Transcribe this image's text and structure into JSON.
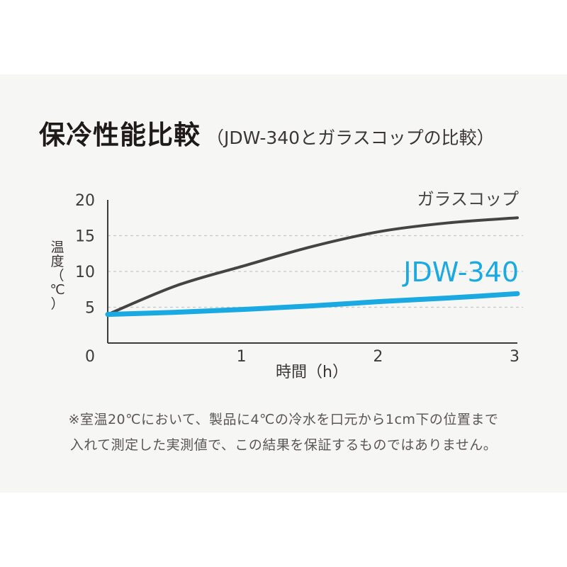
{
  "title": "保冷性能比較",
  "subtitle": "（JDW-340とガラスコップの比較）",
  "notes": [
    "※室温20℃において、製品に4℃の冷水を口元から1cm下の位置まで",
    "入れて測定した実測値で、この結果を保証するものではありません。"
  ],
  "colors": {
    "background": "#f6f6f5",
    "glass": "#444444",
    "jdw": "#1aa9e0",
    "grid": "#c8c8c8",
    "axis": "#3c3c3c"
  },
  "chart_data": {
    "type": "line",
    "xlabel": "時間（h）",
    "ylabel": [
      "温",
      "度",
      "（",
      "℃",
      "）"
    ],
    "xlim": [
      0,
      3
    ],
    "ylim": [
      0,
      20
    ],
    "x_ticks": [
      "0",
      "1",
      "2",
      "3"
    ],
    "y_ticks": [
      "5",
      "10",
      "15",
      "20"
    ],
    "grid": "horizontal dashed at 5, 10, 15",
    "series": [
      {
        "name": "ガラスコップ",
        "color": "#444444",
        "x": [
          0,
          0.5,
          1,
          1.5,
          2,
          2.5,
          3
        ],
        "y": [
          4,
          8,
          10.8,
          13.5,
          15.6,
          16.8,
          17.5
        ]
      },
      {
        "name": "JDW-340",
        "color": "#1aa9e0",
        "x": [
          0,
          0.5,
          1,
          1.5,
          2,
          2.5,
          3
        ],
        "y": [
          4,
          4.3,
          4.7,
          5.2,
          5.8,
          6.3,
          6.9
        ]
      }
    ]
  }
}
